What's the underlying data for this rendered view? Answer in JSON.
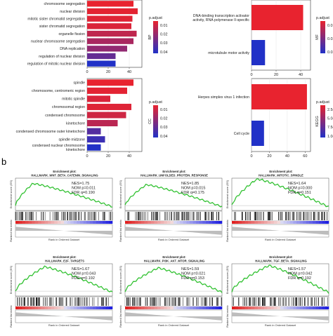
{
  "panel_b_label": "b",
  "colors": {
    "high_p": "#e8232f",
    "low_p": "#2131c7",
    "gsea_line": "#33c233",
    "gsea_box": "#ffffff"
  },
  "chart_data": [
    {
      "type": "bar",
      "orientation": "horizontal",
      "panel": "BP",
      "categories": [
        "chromosome segregation",
        "nuclear division",
        "mitotic sister chromatid segregation",
        "sister chromatid segregation",
        "organelle fission",
        "nuclear chromosome segregation",
        "DNA replication",
        "regulation of nuclear division",
        "regulation of mitotic nuclear division"
      ],
      "values": [
        44,
        48,
        43,
        42,
        47,
        44,
        38,
        27,
        27
      ],
      "p_adjust": [
        0.001,
        0.002,
        0.003,
        0.004,
        0.01,
        0.015,
        0.02,
        0.03,
        0.045
      ],
      "xticks": [
        "0",
        "20",
        "40"
      ],
      "xlim": [
        0,
        52
      ],
      "legend_title": "p.adjust",
      "legend_ticks": [
        "0.01",
        "0.02",
        "0.03",
        "0.04"
      ],
      "side_label": "BP"
    },
    {
      "type": "bar",
      "orientation": "horizontal",
      "panel": "MF",
      "categories": [
        "DNA-binding transcription activator activity, RNA polymerase II-specific",
        "microtubule motor activity"
      ],
      "values": [
        42,
        11
      ],
      "p_adjust": [
        0.001,
        0.038
      ],
      "xticks": [
        "0",
        "20",
        "40"
      ],
      "xlim": [
        0,
        48
      ],
      "legend_title": "p.adjust",
      "legend_ticks": [
        "0.01",
        "0.02",
        "0.03"
      ],
      "side_label": "MF"
    },
    {
      "type": "bar",
      "orientation": "horizontal",
      "panel": "CC",
      "categories": [
        "spindle",
        "chromosome, centromeric region",
        "mitotic spindle",
        "chromosomal region",
        "condensed chromosome",
        "kinetochore",
        "condensed chromosome outer kinetochore",
        "spindle midzone",
        "condensed nuclear chromosome kinetochore"
      ],
      "values": [
        44,
        38,
        22,
        42,
        37,
        29,
        13,
        17,
        13
      ],
      "p_adjust": [
        0.001,
        0.002,
        0.004,
        0.003,
        0.006,
        0.01,
        0.03,
        0.035,
        0.04
      ],
      "xticks": [
        "0",
        "20",
        "40"
      ],
      "xlim": [
        0,
        52
      ],
      "legend_title": "p.adjust",
      "legend_ticks": [
        "0.01",
        "0.02",
        "0.03",
        "0.04"
      ],
      "side_label": "CC"
    },
    {
      "type": "bar",
      "orientation": "horizontal",
      "panel": "KEGG",
      "categories": [
        "Herpes simplex virus 1 infection",
        "Cell cycle"
      ],
      "values": [
        62,
        14
      ],
      "p_adjust": [
        1e-05,
        0.0008
      ],
      "xticks": [
        "0",
        "20",
        "40",
        "60"
      ],
      "xlim": [
        0,
        66
      ],
      "legend_title": "p.adjust",
      "legend_ticks": [
        "2.5e-05",
        "5.0e-05",
        "7.5e-05",
        "1.0e-04"
      ],
      "side_label": "KEGG"
    },
    {
      "type": "line",
      "panel": "GSEA",
      "plots": [
        {
          "label": "Enrichment plot:",
          "name": "HALLMARK_WNT_BETA_CATENIN_SIGNALING",
          "stats": [
            "NES=1.75",
            "NOM p=0.011",
            "FDR q=0.190"
          ],
          "peak": 0.35
        },
        {
          "label": "Enrichment plot:",
          "name": "HALLMARK_UNFOLDED_PROTEIN_RESPONSE",
          "stats": [
            "NES=1.85",
            "NOM p=0.015",
            "FDR q=0.175"
          ],
          "peak": 0.3
        },
        {
          "label": "Enrichment plot:",
          "name": "HALLMARK_MITOTIC_SPINDLE",
          "stats": [
            "NES=1.64",
            "NOM p=0.000",
            "FDR q=0.151"
          ],
          "peak": 0.55
        },
        {
          "label": "Enrichment plot:",
          "name": "HALLMARK_E2F_TARGETS",
          "stats": [
            "NES=1.67",
            "NOM p=0.043",
            "FDR q=0.192"
          ],
          "peak": 0.45
        },
        {
          "label": "Enrichment plot:",
          "name": "HALLMARK_PI3K_AKT_MTOR_SIGNALING",
          "stats": [
            "NES=1.59",
            "NOM p=0.021",
            "FDR q=0.153"
          ],
          "peak": 0.4
        },
        {
          "label": "Enrichment plot:",
          "name": "HALLMARK_TGF_BETA_SIGNALING",
          "stats": [
            "NES=1.57",
            "NOM p=0.042",
            "FDR q=0.192"
          ],
          "peak": 0.5
        }
      ],
      "ylabel_top": "Enrichment score (ES)",
      "ylabel_bottom": "Ranked list metric",
      "xlabel": "Rank in Ordered Dataset"
    }
  ]
}
